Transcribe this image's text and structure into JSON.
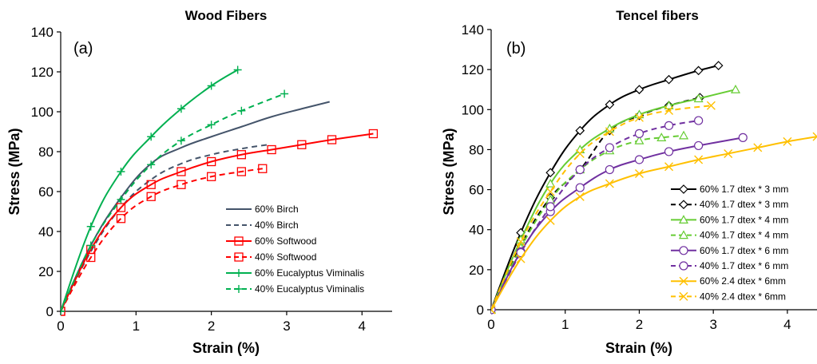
{
  "colors": {
    "birch": "#44546A",
    "softwood": "#FF0000",
    "eucalyptus": "#00B050",
    "black": "#000000",
    "green_light": "#66CC33",
    "purple": "#7030A0",
    "gold": "#FFC000"
  },
  "chart_data": [
    {
      "type": "line",
      "panel_label": "(a)",
      "title": "Wood Fibers",
      "xlabel": "Strain (%)",
      "ylabel": "Stress (MPa)",
      "xlim": [
        0,
        4.4
      ],
      "ylim": [
        0,
        140
      ],
      "xticks": [
        0,
        1,
        2,
        3,
        4
      ],
      "yticks": [
        0,
        20,
        40,
        60,
        80,
        100,
        120,
        140
      ],
      "grid": false,
      "legend_position": "lower-right",
      "series": [
        {
          "name": "60% Birch",
          "color": "#44546A",
          "dash": "solid",
          "marker": "none",
          "x": [
            0,
            0.4,
            0.8,
            1.2,
            1.6,
            2.0,
            2.4,
            2.8,
            3.2,
            3.57
          ],
          "y": [
            0,
            33,
            57,
            74,
            82,
            87.5,
            92.5,
            97.5,
            101.5,
            105
          ]
        },
        {
          "name": "40% Birch",
          "color": "#44546A",
          "dash": "dashed",
          "marker": "none",
          "x": [
            0,
            0.4,
            0.8,
            1.2,
            1.6,
            2.0,
            2.4,
            2.75
          ],
          "y": [
            0,
            30,
            52,
            66,
            74,
            78.5,
            81.5,
            83.5
          ]
        },
        {
          "name": "60% Softwood",
          "color": "#FF0000",
          "dash": "solid",
          "marker": "square",
          "x": [
            0,
            0.4,
            0.8,
            1.2,
            1.6,
            2.0,
            2.4,
            2.8,
            3.2,
            3.6,
            4.15
          ],
          "y": [
            0,
            31,
            52,
            63.5,
            70,
            75,
            78.5,
            81,
            83.5,
            86,
            89
          ]
        },
        {
          "name": "40% Softwood",
          "color": "#FF0000",
          "dash": "dashed",
          "marker": "square",
          "x": [
            0,
            0.4,
            0.8,
            1.2,
            1.6,
            2.0,
            2.4,
            2.68
          ],
          "y": [
            0,
            27,
            46.5,
            57.5,
            63.5,
            67.5,
            70,
            71.5
          ]
        },
        {
          "name": "60% Eucalyptus Viminalis",
          "color": "#00B050",
          "dash": "solid",
          "marker": "plus",
          "x": [
            0,
            0.4,
            0.8,
            1.2,
            1.6,
            2.0,
            2.35
          ],
          "y": [
            0,
            42.5,
            70,
            87.5,
            101.5,
            113,
            121
          ]
        },
        {
          "name": "40% Eucalyptus Viminalis",
          "color": "#00B050",
          "dash": "dashed",
          "marker": "plus",
          "x": [
            0,
            0.4,
            0.8,
            1.2,
            1.6,
            2.0,
            2.4,
            2.97
          ],
          "y": [
            0,
            33,
            56,
            73.5,
            85.5,
            93.5,
            100.5,
            109
          ]
        }
      ]
    },
    {
      "type": "line",
      "panel_label": "(b)",
      "title": "Tencel fibers",
      "xlabel": "Strain (%)",
      "ylabel": "Stress (MPa)",
      "xlim": [
        0,
        4.4
      ],
      "ylim": [
        0,
        140
      ],
      "xticks": [
        0,
        1,
        2,
        3,
        4
      ],
      "yticks": [
        0,
        20,
        40,
        60,
        80,
        100,
        120,
        140
      ],
      "grid": false,
      "legend_position": "lower-right",
      "series": [
        {
          "name": "60% 1.7 dtex * 3 mm",
          "color": "#000000",
          "dash": "solid",
          "marker": "diamond",
          "x": [
            0,
            0.4,
            0.8,
            1.2,
            1.6,
            2.0,
            2.4,
            2.8,
            3.07
          ],
          "y": [
            0,
            38.5,
            68.5,
            89.5,
            102.5,
            110,
            115,
            119.5,
            122
          ]
        },
        {
          "name": "40% 1.7 dtex * 3 mm",
          "color": "#000000",
          "dash": "dashed",
          "marker": "diamond",
          "x": [
            0,
            0.4,
            0.8,
            1.2,
            1.6,
            2.0,
            2.4,
            2.82
          ],
          "y": [
            0,
            32,
            56,
            70,
            89.5,
            97,
            102,
            106
          ]
        },
        {
          "name": "60% 1.7 dtex * 4 mm",
          "color": "#66CC33",
          "dash": "solid",
          "marker": "triangle",
          "x": [
            0,
            0.4,
            0.8,
            1.2,
            1.6,
            2.0,
            2.4,
            2.8,
            3.3
          ],
          "y": [
            0,
            35,
            63,
            80,
            90.5,
            97.5,
            102,
            105.5,
            110
          ]
        },
        {
          "name": "40% 1.7 dtex * 4 mm",
          "color": "#66CC33",
          "dash": "dashed",
          "marker": "triangle",
          "x": [
            0,
            0.4,
            0.8,
            1.2,
            1.6,
            2.0,
            2.3,
            2.6
          ],
          "y": [
            0,
            31,
            55,
            70,
            79.5,
            84.5,
            86,
            87
          ]
        },
        {
          "name": "60% 1.7 dtex * 6 mm",
          "color": "#7030A0",
          "dash": "solid",
          "marker": "circle",
          "x": [
            0,
            0.4,
            0.8,
            1.2,
            1.6,
            2.0,
            2.4,
            2.8,
            3.4
          ],
          "y": [
            0,
            29,
            49,
            61,
            70,
            75,
            79,
            82,
            86
          ]
        },
        {
          "name": "40% 1.7 dtex * 6 mm",
          "color": "#7030A0",
          "dash": "dashed",
          "marker": "circle",
          "x": [
            0,
            0.4,
            0.8,
            1.2,
            1.6,
            2.0,
            2.4,
            2.8
          ],
          "y": [
            0,
            28.5,
            51.5,
            70,
            81,
            88,
            92,
            94.5
          ]
        },
        {
          "name": "60% 2.4 dtex * 6mm",
          "color": "#FFC000",
          "dash": "solid",
          "marker": "x",
          "x": [
            0,
            0.4,
            0.8,
            1.2,
            1.6,
            2.0,
            2.4,
            2.8,
            3.2,
            3.6,
            4.0,
            4.4
          ],
          "y": [
            0,
            25.5,
            44.5,
            56.5,
            63,
            68,
            71.5,
            75,
            78,
            81,
            84,
            86.5
          ]
        },
        {
          "name": "40% 2.4 dtex * 6mm",
          "color": "#FFC000",
          "dash": "dashed",
          "marker": "x",
          "x": [
            0,
            0.4,
            0.8,
            1.2,
            1.6,
            2.0,
            2.4,
            2.97
          ],
          "y": [
            0,
            34,
            59,
            78,
            89,
            96,
            99.5,
            102
          ]
        }
      ]
    }
  ]
}
